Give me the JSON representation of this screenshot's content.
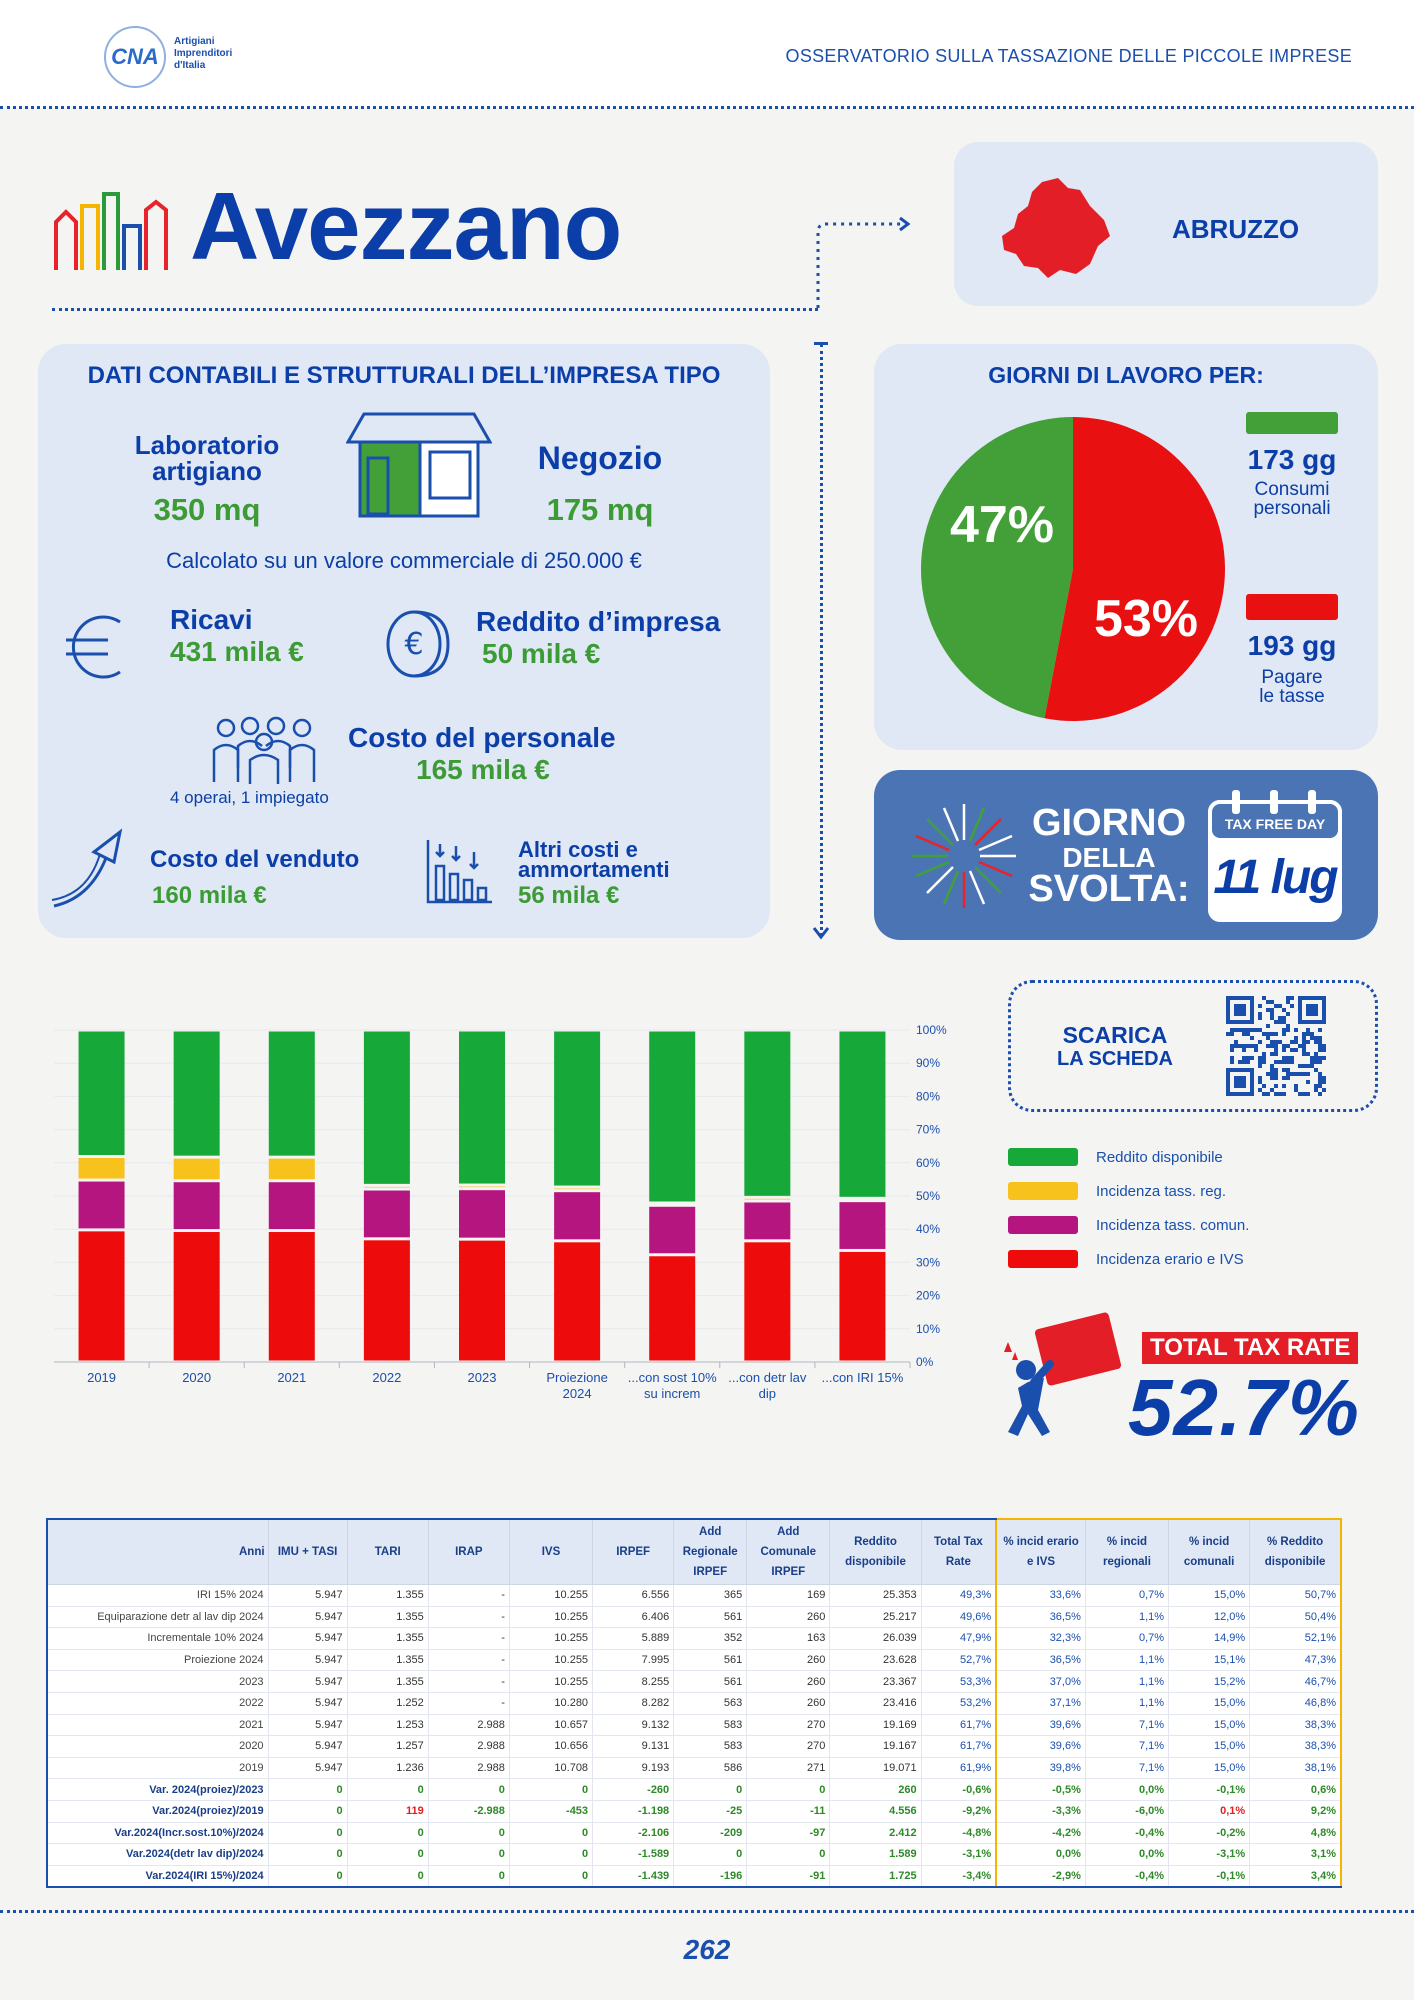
{
  "header": {
    "logo_abbr": "CNA",
    "logo_text": [
      "Artigiani",
      "Imprenditori",
      "d'Italia"
    ],
    "title": "OSSERVATORIO SULLA TASSAZIONE DELLE PICCOLE IMPRESE"
  },
  "city": "Avezzano",
  "region": "ABRUZZO",
  "impresa": {
    "title": "DATI CONTABILI E STRUTTURALI DELL’IMPRESA TIPO",
    "lab_label_1": "Laboratorio",
    "lab_label_2": "artigiano",
    "lab_value": "350 mq",
    "negozio_label": "Negozio",
    "negozio_value": "175 mq",
    "note": "Calcolato su un valore commerciale di 250.000 €",
    "ricavi_label": "Ricavi",
    "ricavi_value": "431 mila €",
    "reddito_label": "Reddito d’impresa",
    "reddito_value": "50 mila €",
    "personale_label": "Costo del personale",
    "personale_value": "165 mila €",
    "personale_note": "4 operai, 1 impiegato",
    "venduto_label": "Costo del venduto",
    "venduto_value": "160 mila €",
    "altri_label_1": "Altri costi e",
    "altri_label_2": "ammortamenti",
    "altri_value": "56 mila €"
  },
  "giorni": {
    "title": "GIORNI DI LAVORO PER:",
    "green_pct": "47%",
    "red_pct": "53%",
    "green_pct_value": 47,
    "red_pct_value": 53,
    "green_days": "173 gg",
    "green_desc_1": "Consumi",
    "green_desc_2": "personali",
    "red_days": "193 gg",
    "red_desc_1": "Pagare",
    "red_desc_2": "le tasse",
    "green_color": "#43a038",
    "red_color": "#e81010"
  },
  "svolta": {
    "line1": "GIORNO",
    "line2": "DELLA",
    "line3": "SVOLTA:",
    "calendar_label": "TAX FREE DAY",
    "date": "11 lug"
  },
  "qr": {
    "line1": "SCARICA",
    "line2": "LA SCHEDA"
  },
  "legend": [
    {
      "label": "Reddito disponibile",
      "color": "#17a83a"
    },
    {
      "label": "Incidenza tass. reg.",
      "color": "#f7c21b"
    },
    {
      "label": "Incidenza tass. comun.",
      "color": "#b5157f"
    },
    {
      "label": "Incidenza erario e IVS",
      "color": "#ee0b0b"
    }
  ],
  "total_tax": {
    "label": "TOTAL TAX RATE",
    "value": "52.7%"
  },
  "chart_data": {
    "type": "bar",
    "stacked": true,
    "categories": [
      "2019",
      "2020",
      "2021",
      "2022",
      "2023",
      "Proiezione 2024",
      "...con sost 10% su increm",
      "...con detr lav dip",
      "...con IRI 15%"
    ],
    "category_lines": [
      [
        "2019"
      ],
      [
        "2020"
      ],
      [
        "2021"
      ],
      [
        "2022"
      ],
      [
        "2023"
      ],
      [
        "Proiezione",
        "2024"
      ],
      [
        "...con sost 10%",
        "su increm"
      ],
      [
        "...con detr lav",
        "dip"
      ],
      [
        "...con IRI 15%"
      ]
    ],
    "series": [
      {
        "name": "Incidenza erario e IVS",
        "color": "#ee0b0b",
        "values": [
          39.8,
          39.6,
          39.6,
          37.1,
          37.0,
          36.5,
          32.3,
          36.5,
          33.6
        ]
      },
      {
        "name": "Incidenza tass. comun.",
        "color": "#b5157f",
        "values": [
          15.0,
          15.0,
          15.0,
          15.0,
          15.2,
          15.1,
          14.9,
          12.0,
          15.0
        ]
      },
      {
        "name": "Incidenza tass. reg.",
        "color": "#f7c21b",
        "values": [
          7.1,
          7.1,
          7.1,
          1.1,
          1.1,
          1.1,
          0.7,
          1.1,
          0.7
        ]
      },
      {
        "name": "Reddito disponibile",
        "color": "#17a83a",
        "values": [
          38.1,
          38.3,
          38.3,
          46.8,
          46.7,
          47.3,
          52.1,
          50.4,
          50.7
        ]
      }
    ],
    "ylim": [
      0,
      100
    ],
    "yticks": [
      "0%",
      "10%",
      "20%",
      "30%",
      "40%",
      "50%",
      "60%",
      "70%",
      "80%",
      "90%",
      "100%"
    ]
  },
  "table": {
    "headers": [
      "Anni",
      "IMU + TASI",
      "TARI",
      "IRAP",
      "IVS",
      "IRPEF",
      "Add Regionale IRPEF",
      "Add Comunale IRPEF",
      "Reddito disponibile",
      "Total Tax Rate",
      "% incid erario e IVS",
      "% incid regionali",
      "% incid comunali",
      "% Reddito disponibile"
    ],
    "rows": [
      [
        "IRI 15% 2024",
        "5.947",
        "1.355",
        "-",
        "10.255",
        "6.556",
        "365",
        "169",
        "25.353",
        "49,3%",
        "33,6%",
        "0,7%",
        "15,0%",
        "50,7%"
      ],
      [
        "Equiparazione detr al lav dip 2024",
        "5.947",
        "1.355",
        "-",
        "10.255",
        "6.406",
        "561",
        "260",
        "25.217",
        "49,6%",
        "36,5%",
        "1,1%",
        "12,0%",
        "50,4%"
      ],
      [
        "Incrementale 10% 2024",
        "5.947",
        "1.355",
        "-",
        "10.255",
        "5.889",
        "352",
        "163",
        "26.039",
        "47,9%",
        "32,3%",
        "0,7%",
        "14,9%",
        "52,1%"
      ],
      [
        "Proiezione 2024",
        "5.947",
        "1.355",
        "-",
        "10.255",
        "7.995",
        "561",
        "260",
        "23.628",
        "52,7%",
        "36,5%",
        "1,1%",
        "15,1%",
        "47,3%"
      ],
      [
        "2023",
        "5.947",
        "1.355",
        "-",
        "10.255",
        "8.255",
        "561",
        "260",
        "23.367",
        "53,3%",
        "37,0%",
        "1,1%",
        "15,2%",
        "46,7%"
      ],
      [
        "2022",
        "5.947",
        "1.252",
        "-",
        "10.280",
        "8.282",
        "563",
        "260",
        "23.416",
        "53,2%",
        "37,1%",
        "1,1%",
        "15,0%",
        "46,8%"
      ],
      [
        "2021",
        "5.947",
        "1.253",
        "2.988",
        "10.657",
        "9.132",
        "583",
        "270",
        "19.169",
        "61,7%",
        "39,6%",
        "7,1%",
        "15,0%",
        "38,3%"
      ],
      [
        "2020",
        "5.947",
        "1.257",
        "2.988",
        "10.656",
        "9.131",
        "583",
        "270",
        "19.167",
        "61,7%",
        "39,6%",
        "7,1%",
        "15,0%",
        "38,3%"
      ],
      [
        "2019",
        "5.947",
        "1.236",
        "2.988",
        "10.708",
        "9.193",
        "586",
        "271",
        "19.071",
        "61,9%",
        "39,8%",
        "7,1%",
        "15,0%",
        "38,1%"
      ]
    ],
    "var_rows": [
      [
        "Var. 2024(proiez)/2023",
        "0",
        "0",
        "0",
        "0",
        "-260",
        "0",
        "0",
        "260",
        "-0,6%",
        "-0,5%",
        "0,0%",
        "-0,1%",
        "0,6%"
      ],
      [
        "Var.2024(proiez)/2019",
        "0",
        "119",
        "-2.988",
        "-453",
        "-1.198",
        "-25",
        "-11",
        "4.556",
        "-9,2%",
        "-3,3%",
        "-6,0%",
        "0,1%",
        "9,2%"
      ],
      [
        "Var.2024(Incr.sost.10%)/2024",
        "0",
        "0",
        "0",
        "0",
        "-2.106",
        "-209",
        "-97",
        "2.412",
        "-4,8%",
        "-4,2%",
        "-0,4%",
        "-0,2%",
        "4,8%"
      ],
      [
        "Var.2024(detr lav dip)/2024",
        "0",
        "0",
        "0",
        "0",
        "-1.589",
        "0",
        "0",
        "1.589",
        "-3,1%",
        "0,0%",
        "0,0%",
        "-3,1%",
        "3,1%"
      ],
      [
        "Var.2024(IRI 15%)/2024",
        "0",
        "0",
        "0",
        "0",
        "-1.439",
        "-196",
        "-91",
        "1.725",
        "-3,4%",
        "-2,9%",
        "-0,4%",
        "-0,1%",
        "3,4%"
      ]
    ]
  },
  "page_number": "262"
}
